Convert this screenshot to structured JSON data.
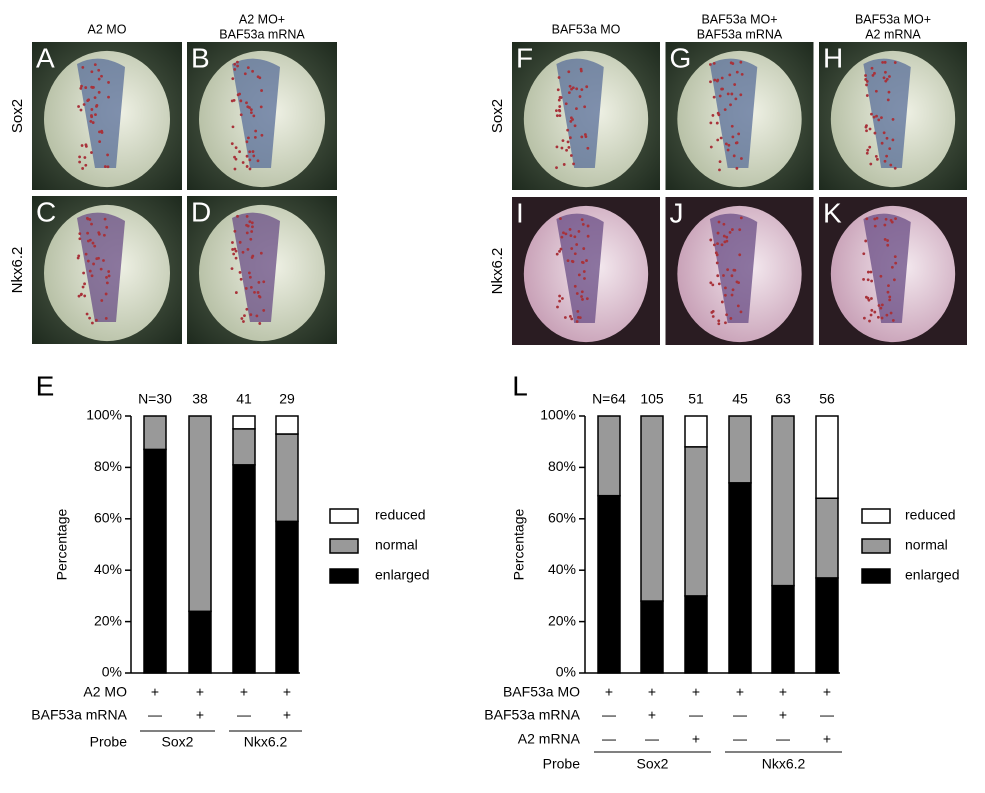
{
  "photo_panels": [
    {
      "columns": [
        [
          "A2 MO"
        ],
        [
          "A2 MO+",
          "BAF53a mRNA"
        ]
      ],
      "rows": [
        "Sox2",
        "Nkx6.2"
      ],
      "letters": [
        [
          "A",
          "B"
        ],
        [
          "C",
          "D"
        ]
      ]
    },
    {
      "columns": [
        [
          "BAF53a MO"
        ],
        [
          "BAF53a MO+",
          "BAF53a mRNA"
        ],
        [
          "BAF53a MO+",
          "A2 mRNA"
        ]
      ],
      "rows": [
        "Sox2",
        "Nkx6.2"
      ],
      "letters": [
        [
          "F",
          "G",
          "H"
        ],
        [
          "I",
          "J",
          "K"
        ]
      ]
    }
  ],
  "chart_data": [
    {
      "type": "bar",
      "stacked": true,
      "panel_label": "E",
      "y_label": "Percentage",
      "n_labels": [
        "N=30",
        "38",
        "41",
        "29"
      ],
      "categories": [
        null,
        null,
        null,
        null
      ],
      "series": [
        {
          "name": "enlarged",
          "color": "#000000",
          "values": [
            87,
            24,
            81,
            59
          ]
        },
        {
          "name": "normal",
          "color": "#999999",
          "values": [
            13,
            76,
            14,
            34
          ]
        },
        {
          "name": "reduced",
          "color": "#ffffff",
          "values": [
            0,
            0,
            5,
            7
          ]
        }
      ],
      "ylim": [
        0,
        100
      ],
      "yticks": [
        {
          "value": 0,
          "label": "0%"
        },
        {
          "value": 20,
          "label": "20%"
        },
        {
          "value": 40,
          "label": "40%"
        },
        {
          "value": 60,
          "label": "60%"
        },
        {
          "value": 80,
          "label": "80%"
        },
        {
          "value": 100,
          "label": "100%"
        }
      ],
      "conditions": [
        {
          "label": "A2 MO",
          "values": [
            "+",
            "+",
            "+",
            "+"
          ]
        },
        {
          "label": "BAF53a mRNA",
          "values": [
            "—",
            "+",
            "—",
            "+"
          ]
        }
      ],
      "probe_label": "Probe",
      "probes": [
        "Sox2",
        "Nkx6.2"
      ],
      "legend": "right"
    },
    {
      "type": "bar",
      "stacked": true,
      "panel_label": "L",
      "y_label": "Percentage",
      "n_labels": [
        "N=64",
        "105",
        "51",
        "45",
        "63",
        "56"
      ],
      "categories": [
        null,
        null,
        null,
        null,
        null,
        null
      ],
      "series": [
        {
          "name": "enlarged",
          "color": "#000000",
          "values": [
            69,
            28,
            30,
            74,
            34,
            37
          ]
        },
        {
          "name": "normal",
          "color": "#999999",
          "values": [
            31,
            72,
            58,
            26,
            66,
            31
          ]
        },
        {
          "name": "reduced",
          "color": "#ffffff",
          "values": [
            0,
            0,
            12,
            0,
            0,
            32
          ]
        }
      ],
      "ylim": [
        0,
        100
      ],
      "yticks": [
        {
          "value": 0,
          "label": "0%"
        },
        {
          "value": 20,
          "label": "20%"
        },
        {
          "value": 40,
          "label": "40%"
        },
        {
          "value": 60,
          "label": "60%"
        },
        {
          "value": 80,
          "label": "80%"
        },
        {
          "value": 100,
          "label": "100%"
        }
      ],
      "conditions": [
        {
          "label": "BAF53a MO",
          "values": [
            "+",
            "+",
            "+",
            "+",
            "+",
            "+"
          ]
        },
        {
          "label": "BAF53a mRNA",
          "values": [
            "—",
            "+",
            "—",
            "—",
            "+",
            "—"
          ]
        },
        {
          "label": "A2 mRNA",
          "values": [
            "—",
            "—",
            "+",
            "—",
            "—",
            "+"
          ]
        }
      ],
      "probe_label": "Probe",
      "probes": [
        "Sox2",
        "Nkx6.2"
      ],
      "legend": "right"
    }
  ]
}
